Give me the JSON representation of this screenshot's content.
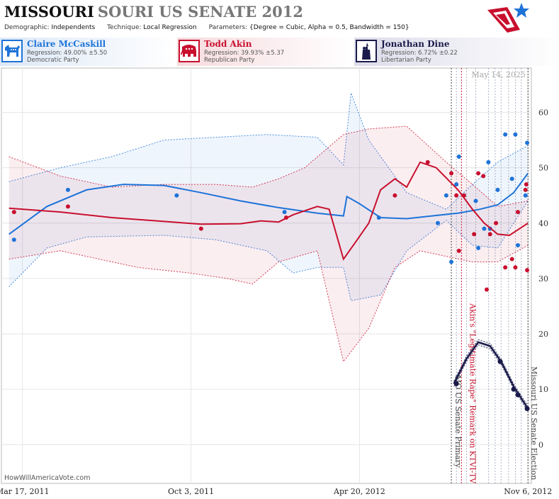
{
  "header": {
    "title_main": "MISSOURI",
    "title_sub": "SOURI US SENATE 2012",
    "demographic_label": "Demographic:",
    "demographic_value": "Independents",
    "technique_label": "Technique:",
    "technique_value": "Local Regression",
    "parameters_label": "Parameters:",
    "parameters_value": "{Degree = Cubic, Alpha = 0.5, Bandwidth = 150}"
  },
  "candidates": [
    {
      "name": "Claire McCaskill",
      "regression": "Regression: 49.00% ±5.50",
      "party": "Democratic Party",
      "color": "#1e73d8",
      "icon": "donkey-icon"
    },
    {
      "name": "Todd Akin",
      "regression": "Regression: 39.93% ±5.37",
      "party": "Republican Party",
      "color": "#c8102e",
      "icon": "elephant-icon"
    },
    {
      "name": "Jonathan Dine",
      "regression": "Regression: 6.72% ±0.22",
      "party": "Libertarian Party",
      "color": "#1a1a4a",
      "icon": "liberty-torch-icon"
    }
  ],
  "footer": {
    "credit": "HowWillAmericaVote.com"
  },
  "chart_data": {
    "type": "line",
    "date_stamp": "May 14, 2025",
    "x_ticks": [
      "Mar 17, 2011",
      "Oct 3, 2011",
      "Apr 20, 2012",
      "Nov 6, 2012"
    ],
    "x_range": [
      "2011-02-20",
      "2012-11-10"
    ],
    "y_ticks": [
      0,
      10,
      20,
      30,
      40,
      50,
      60
    ],
    "ylim": [
      -7,
      68
    ],
    "y_axis_side": "right",
    "grid": true,
    "events": [
      {
        "date": "2012-08-07",
        "label": "MO US Senate Primary",
        "color": "#444444"
      },
      {
        "date": "2012-08-19",
        "label": "Akin's \"Legitimate Rape\" Remark on KTVI-TV",
        "color": "#c8102e"
      },
      {
        "date": "2012-11-06",
        "label": "Missouri US Senate Election",
        "color": "#444444"
      }
    ],
    "series": [
      {
        "name": "Claire McCaskill",
        "color": "#1e73d8",
        "trend": [
          [
            "2011-03-01",
            38
          ],
          [
            "2011-04-15",
            43
          ],
          [
            "2011-06-01",
            46
          ],
          [
            "2011-07-15",
            47
          ],
          [
            "2011-09-01",
            46.8
          ],
          [
            "2011-10-15",
            45.5
          ],
          [
            "2011-12-01",
            44
          ],
          [
            "2012-01-15",
            42.8
          ],
          [
            "2012-03-01",
            41.8
          ],
          [
            "2012-04-01",
            41.3
          ],
          [
            "2012-04-05",
            44.8
          ],
          [
            "2012-04-20",
            43.5
          ],
          [
            "2012-05-15",
            41
          ],
          [
            "2012-06-15",
            40.8
          ],
          [
            "2012-07-15",
            41.3
          ],
          [
            "2012-08-15",
            41.8
          ],
          [
            "2012-09-10",
            42.5
          ],
          [
            "2012-10-01",
            43.3
          ],
          [
            "2012-10-20",
            45.5
          ],
          [
            "2012-11-06",
            49
          ]
        ],
        "upper": [
          [
            "2011-03-01",
            47.5
          ],
          [
            "2011-05-01",
            50
          ],
          [
            "2011-07-01",
            52
          ],
          [
            "2011-09-01",
            55
          ],
          [
            "2011-11-01",
            55.5
          ],
          [
            "2012-01-01",
            56
          ],
          [
            "2012-03-01",
            55.5
          ],
          [
            "2012-04-01",
            50.5
          ],
          [
            "2012-04-10",
            63.5
          ],
          [
            "2012-05-01",
            55
          ],
          [
            "2012-06-15",
            45.5
          ],
          [
            "2012-08-01",
            42.5
          ],
          [
            "2012-09-01",
            47
          ],
          [
            "2012-10-01",
            51
          ],
          [
            "2012-11-06",
            54
          ]
        ],
        "lower": [
          [
            "2011-03-01",
            28.5
          ],
          [
            "2011-04-15",
            35.5
          ],
          [
            "2011-06-01",
            37.5
          ],
          [
            "2011-09-01",
            37.8
          ],
          [
            "2011-11-01",
            37
          ],
          [
            "2012-01-01",
            35
          ],
          [
            "2012-02-01",
            31
          ],
          [
            "2012-03-01",
            32
          ],
          [
            "2012-04-01",
            32
          ],
          [
            "2012-04-10",
            26
          ],
          [
            "2012-05-15",
            27
          ],
          [
            "2012-06-15",
            35
          ],
          [
            "2012-08-01",
            40.5
          ],
          [
            "2012-09-01",
            36
          ],
          [
            "2012-10-01",
            35.5
          ],
          [
            "2012-11-06",
            44
          ]
        ],
        "polls": [
          [
            "2011-03-07",
            37
          ],
          [
            "2011-05-10",
            46
          ],
          [
            "2011-09-16",
            45
          ],
          [
            "2012-01-22",
            42
          ],
          [
            "2012-05-13",
            41
          ],
          [
            "2012-07-22",
            40
          ],
          [
            "2012-08-01",
            45
          ],
          [
            "2012-08-07",
            33
          ],
          [
            "2012-08-13",
            47
          ],
          [
            "2012-08-16",
            52
          ],
          [
            "2012-08-22",
            45
          ],
          [
            "2012-09-05",
            44
          ],
          [
            "2012-09-08",
            35.5
          ],
          [
            "2012-09-15",
            39
          ],
          [
            "2012-09-20",
            51
          ],
          [
            "2012-09-22",
            39
          ],
          [
            "2012-10-01",
            46
          ],
          [
            "2012-10-10",
            56
          ],
          [
            "2012-10-18",
            48
          ],
          [
            "2012-10-22",
            56
          ],
          [
            "2012-10-25",
            36
          ],
          [
            "2012-11-03",
            45
          ],
          [
            "2012-11-05",
            54.5
          ]
        ]
      },
      {
        "name": "Todd Akin",
        "color": "#c8102e",
        "trend": [
          [
            "2011-03-01",
            42.7
          ],
          [
            "2011-05-01",
            42
          ],
          [
            "2011-07-01",
            41
          ],
          [
            "2011-09-01",
            40.3
          ],
          [
            "2011-10-15",
            39.8
          ],
          [
            "2011-12-01",
            39.9
          ],
          [
            "2011-12-25",
            40.4
          ],
          [
            "2012-01-15",
            40.2
          ],
          [
            "2012-02-01",
            41.5
          ],
          [
            "2012-03-01",
            43
          ],
          [
            "2012-03-15",
            42.5
          ],
          [
            "2012-04-01",
            33.5
          ],
          [
            "2012-04-15",
            36.5
          ],
          [
            "2012-05-01",
            40
          ],
          [
            "2012-05-15",
            46
          ],
          [
            "2012-06-01",
            48
          ],
          [
            "2012-06-15",
            46.5
          ],
          [
            "2012-07-01",
            51
          ],
          [
            "2012-07-20",
            50
          ],
          [
            "2012-08-15",
            46
          ],
          [
            "2012-09-01",
            42.5
          ],
          [
            "2012-09-15",
            40
          ],
          [
            "2012-10-01",
            38
          ],
          [
            "2012-10-15",
            37.8
          ],
          [
            "2012-11-06",
            40
          ]
        ],
        "upper": [
          [
            "2011-03-01",
            52
          ],
          [
            "2011-05-01",
            48.5
          ],
          [
            "2011-07-01",
            46.5
          ],
          [
            "2011-09-01",
            47
          ],
          [
            "2011-11-01",
            47
          ],
          [
            "2011-12-15",
            46.5
          ],
          [
            "2012-01-15",
            48
          ],
          [
            "2012-02-15",
            50
          ],
          [
            "2012-04-01",
            56
          ],
          [
            "2012-05-01",
            57
          ],
          [
            "2012-06-15",
            57.5
          ],
          [
            "2012-08-01",
            51
          ],
          [
            "2012-09-01",
            47
          ],
          [
            "2012-10-01",
            43
          ],
          [
            "2012-11-06",
            44
          ]
        ],
        "lower": [
          [
            "2011-03-01",
            33.5
          ],
          [
            "2011-05-01",
            35
          ],
          [
            "2011-08-01",
            32
          ],
          [
            "2011-10-01",
            31
          ],
          [
            "2011-11-15",
            30
          ],
          [
            "2011-12-15",
            29
          ],
          [
            "2012-01-15",
            33
          ],
          [
            "2012-03-01",
            35
          ],
          [
            "2012-04-01",
            15
          ],
          [
            "2012-05-01",
            21
          ],
          [
            "2012-06-01",
            32
          ],
          [
            "2012-07-01",
            35
          ],
          [
            "2012-08-01",
            34
          ],
          [
            "2012-09-01",
            33
          ],
          [
            "2012-10-01",
            33
          ],
          [
            "2012-11-06",
            36
          ]
        ],
        "polls": [
          [
            "2011-03-07",
            42
          ],
          [
            "2011-05-10",
            43
          ],
          [
            "2011-10-15",
            39
          ],
          [
            "2012-01-24",
            41
          ],
          [
            "2012-06-01",
            45
          ],
          [
            "2012-07-10",
            51
          ],
          [
            "2012-08-07",
            49
          ],
          [
            "2012-08-13",
            45
          ],
          [
            "2012-08-16",
            35
          ],
          [
            "2012-08-22",
            45
          ],
          [
            "2012-09-03",
            38
          ],
          [
            "2012-09-08",
            49
          ],
          [
            "2012-09-14",
            48.5
          ],
          [
            "2012-09-18",
            28
          ],
          [
            "2012-09-22",
            38
          ],
          [
            "2012-09-29",
            40
          ],
          [
            "2012-10-10",
            32
          ],
          [
            "2012-10-18",
            33.5
          ],
          [
            "2012-10-22",
            32
          ],
          [
            "2012-10-25",
            42
          ],
          [
            "2012-11-03",
            46
          ],
          [
            "2012-11-04",
            47
          ],
          [
            "2012-11-05",
            31.5
          ]
        ]
      },
      {
        "name": "Jonathan Dine",
        "color": "#1a1a4a",
        "trend": [
          [
            "2012-08-10",
            11
          ],
          [
            "2012-08-25",
            15.5
          ],
          [
            "2012-09-08",
            18.5
          ],
          [
            "2012-09-22",
            17.8
          ],
          [
            "2012-10-05",
            15
          ],
          [
            "2012-10-20",
            10.5
          ],
          [
            "2012-11-06",
            6.5
          ]
        ],
        "upper": [
          [
            "2012-08-10",
            11.5
          ],
          [
            "2012-08-25",
            16
          ],
          [
            "2012-09-08",
            19
          ],
          [
            "2012-09-22",
            18.3
          ],
          [
            "2012-10-05",
            15.5
          ],
          [
            "2012-10-20",
            11
          ],
          [
            "2012-11-06",
            7
          ]
        ],
        "lower": [
          [
            "2012-08-10",
            10.5
          ],
          [
            "2012-08-25",
            15
          ],
          [
            "2012-09-08",
            18
          ],
          [
            "2012-09-22",
            17.3
          ],
          [
            "2012-10-05",
            14.5
          ],
          [
            "2012-10-20",
            10
          ],
          [
            "2012-11-06",
            6
          ]
        ],
        "polls": [
          [
            "2012-08-13",
            11
          ],
          [
            "2012-10-04",
            15
          ],
          [
            "2012-10-20",
            10
          ],
          [
            "2012-10-25",
            9
          ],
          [
            "2012-11-05",
            6.5
          ]
        ]
      }
    ]
  }
}
